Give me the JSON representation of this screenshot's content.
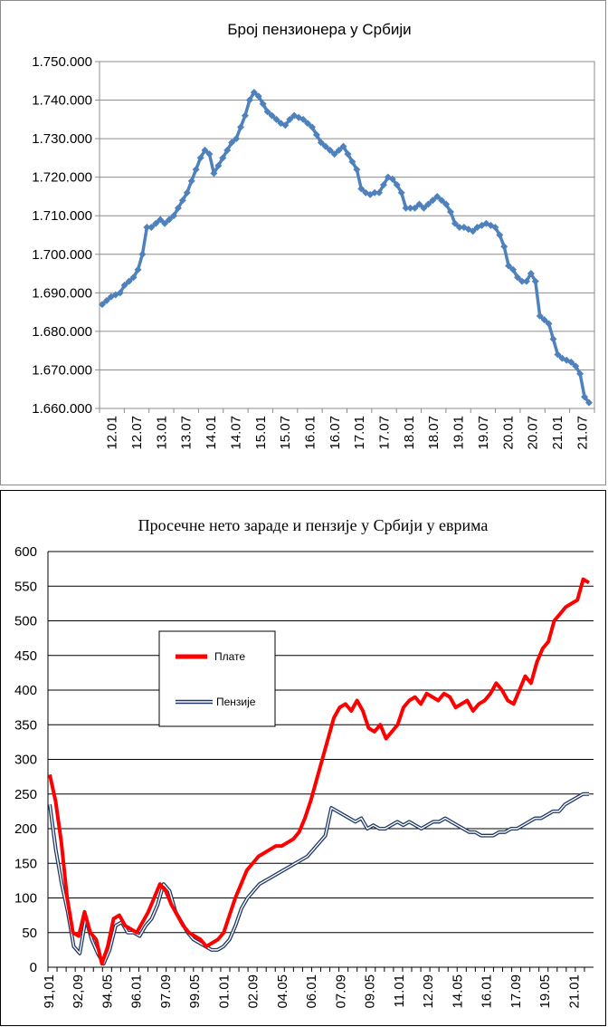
{
  "chart_data": [
    {
      "type": "line",
      "title": "Број пензионера у Србији",
      "xlabel": "",
      "ylabel": "",
      "ylim": [
        1660000,
        1750000
      ],
      "y_ticks": [
        "1.750.000",
        "1.740.000",
        "1.730.000",
        "1.720.000",
        "1.710.000",
        "1.700.000",
        "1.690.000",
        "1.680.000",
        "1.670.000",
        "1.660.000"
      ],
      "x_ticks": [
        "12.01",
        "12.07",
        "13.01",
        "13.07",
        "14.01",
        "14.07",
        "15.01",
        "15.07",
        "16.01",
        "16.07",
        "17.01",
        "17.07",
        "18.01",
        "18.07",
        "19.01",
        "19.07",
        "20.01",
        "20.07",
        "21.01",
        "21.07"
      ],
      "grid": true,
      "color": "#4f81bd",
      "series": [
        {
          "values": [
            1687000,
            1688000,
            1689000,
            1689500,
            1690000,
            1692000,
            1693000,
            1694000,
            1696000,
            1700000,
            1707000,
            1707000,
            1708000,
            1709000,
            1708000,
            1709000,
            1710000,
            1712000,
            1714000,
            1716000,
            1719000,
            1722000,
            1725000,
            1727000,
            1726000,
            1721000,
            1723000,
            1725000,
            1727000,
            1729000,
            1730000,
            1733000,
            1736000,
            1740000,
            1742000,
            1741000,
            1739000,
            1737000,
            1736000,
            1735000,
            1734000,
            1733500,
            1735000,
            1736000,
            1735500,
            1735000,
            1734000,
            1733000,
            1731000,
            1729000,
            1728000,
            1727000,
            1726000,
            1727000,
            1728000,
            1726000,
            1724000,
            1722000,
            1717000,
            1716000,
            1715500,
            1716000,
            1716000,
            1718000,
            1720000,
            1719500,
            1718000,
            1716000,
            1712000,
            1712000,
            1712000,
            1713000,
            1712000,
            1713000,
            1714000,
            1715000,
            1714000,
            1713000,
            1711000,
            1708000,
            1707000,
            1707000,
            1706500,
            1706000,
            1707000,
            1707500,
            1708000,
            1707500,
            1707000,
            1705000,
            1702000,
            1697000,
            1696000,
            1694000,
            1693000,
            1693000,
            1695000,
            1693000,
            1684000,
            1683000,
            1682000,
            1678000,
            1674000,
            1673000,
            1672500,
            1672000,
            1671000,
            1669000,
            1663000,
            1661500
          ]
        }
      ]
    },
    {
      "type": "line",
      "title": "Просечне нето зараде и пензије у Србији у еврима",
      "xlabel": "",
      "ylabel": "",
      "ylim": [
        0,
        600
      ],
      "y_ticks": [
        "600",
        "550",
        "500",
        "450",
        "400",
        "350",
        "300",
        "250",
        "200",
        "150",
        "100",
        "50",
        "0"
      ],
      "x_ticks": [
        "91,01",
        "92,09",
        "94.05",
        "96.01",
        "97.09",
        "99.05",
        "01.01",
        "02.09",
        "04.05",
        "06.01",
        "07.09",
        "09.05",
        "11.01",
        "12.09",
        "14.05",
        "16.01",
        "17.09",
        "19.05",
        "21.01"
      ],
      "grid": true,
      "legend_position": "inside-left",
      "series": [
        {
          "name": "Плате",
          "color": "#ff0000",
          "values": [
            278,
            240,
            180,
            100,
            50,
            45,
            80,
            50,
            40,
            5,
            30,
            70,
            75,
            60,
            55,
            50,
            65,
            80,
            100,
            120,
            110,
            90,
            75,
            60,
            50,
            45,
            40,
            30,
            35,
            40,
            50,
            75,
            100,
            120,
            140,
            150,
            160,
            165,
            170,
            175,
            175,
            180,
            185,
            195,
            215,
            240,
            270,
            300,
            330,
            360,
            375,
            380,
            370,
            385,
            370,
            345,
            340,
            350,
            330,
            340,
            350,
            375,
            385,
            390,
            380,
            395,
            390,
            385,
            395,
            390,
            375,
            380,
            385,
            370,
            380,
            385,
            395,
            410,
            400,
            385,
            380,
            400,
            420,
            410,
            440,
            460,
            470,
            500,
            510,
            520,
            525,
            530,
            560,
            555
          ]
        },
        {
          "name": "Пензије",
          "color": "#1f3864",
          "values": [
            235,
            170,
            120,
            80,
            30,
            20,
            70,
            40,
            20,
            5,
            25,
            60,
            65,
            50,
            50,
            45,
            60,
            70,
            90,
            120,
            110,
            80,
            65,
            50,
            40,
            35,
            30,
            25,
            25,
            30,
            40,
            60,
            85,
            100,
            110,
            120,
            125,
            130,
            135,
            140,
            145,
            150,
            155,
            160,
            170,
            180,
            190,
            230,
            225,
            220,
            215,
            210,
            215,
            200,
            205,
            200,
            200,
            205,
            210,
            205,
            210,
            205,
            200,
            205,
            210,
            210,
            215,
            210,
            205,
            200,
            195,
            195,
            190,
            190,
            190,
            195,
            195,
            200,
            200,
            205,
            210,
            215,
            215,
            220,
            225,
            225,
            235,
            240,
            245,
            250,
            250
          ]
        }
      ]
    }
  ]
}
